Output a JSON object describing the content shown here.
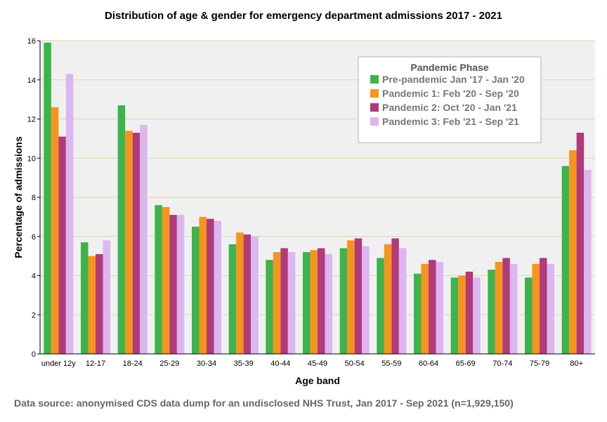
{
  "title": "Distribution of age & gender for emergency department admissions 2017 - 2021",
  "source_note": "Data source: anonymised CDS data dump for an undisclosed NHS Trust, Jan 2017 - Sep 2021 (n=1,929,150)",
  "colors": {
    "plot_background": "#f0f0f0",
    "gridline": "#d9d9a6",
    "series": [
      "#3cb44b",
      "#f7941d",
      "#b03a7a",
      "#dbb6f0"
    ]
  },
  "chart_data": {
    "type": "bar",
    "xlabel": "Age band",
    "ylabel": "Percentage of admissions",
    "ylim": [
      0,
      16
    ],
    "yticks": [
      0,
      2,
      4,
      6,
      8,
      10,
      12,
      14,
      16
    ],
    "grid": true,
    "legend_title": "Pandemic Phase",
    "legend_position": "top-right",
    "categories": [
      "under 12y",
      "12-17",
      "18-24",
      "25-29",
      "30-34",
      "35-39",
      "40-44",
      "45-49",
      "50-54",
      "55-59",
      "60-64",
      "65-69",
      "70-74",
      "75-79",
      "80+"
    ],
    "series": [
      {
        "name": "Pre-pandemic Jan '17 - Jan '20",
        "values": [
          15.9,
          5.7,
          12.7,
          7.6,
          6.5,
          5.6,
          4.8,
          5.2,
          5.4,
          4.9,
          4.1,
          3.9,
          4.3,
          3.9,
          9.6
        ]
      },
      {
        "name": "Pandemic 1: Feb '20 - Sep '20",
        "values": [
          12.6,
          5.0,
          11.4,
          7.5,
          7.0,
          6.2,
          5.2,
          5.3,
          5.8,
          5.6,
          4.6,
          4.0,
          4.7,
          4.6,
          10.4
        ]
      },
      {
        "name": "Pandemic 2: Oct '20 - Jan '21",
        "values": [
          11.1,
          5.1,
          11.3,
          7.1,
          6.9,
          6.1,
          5.4,
          5.4,
          5.9,
          5.9,
          4.8,
          4.2,
          4.9,
          4.9,
          11.3
        ]
      },
      {
        "name": "Pandemic 3: Feb '21 - Sep '21",
        "values": [
          14.3,
          5.8,
          11.7,
          7.1,
          6.8,
          6.0,
          5.2,
          5.1,
          5.5,
          5.4,
          4.7,
          3.9,
          4.6,
          4.6,
          9.4
        ]
      }
    ]
  }
}
